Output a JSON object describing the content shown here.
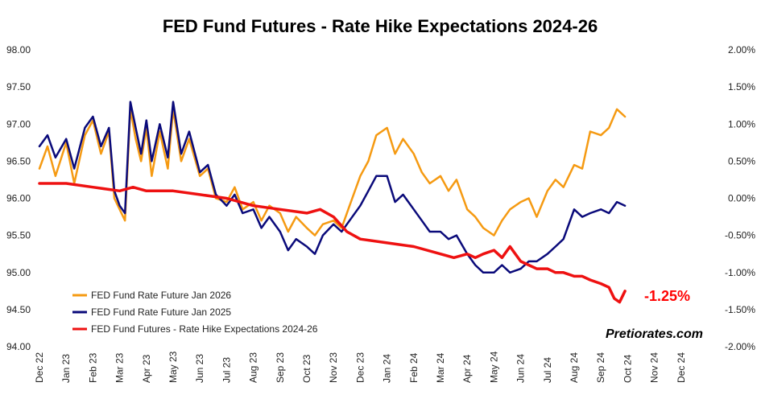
{
  "chart_data": {
    "type": "line",
    "title": "FED Fund Futures - Rate Hike Expectations 2024-26",
    "x_ticks": [
      "Dec 22",
      "Jan 23",
      "Feb 23",
      "Mar 23",
      "Apr 23",
      "May 23",
      "Jun 23",
      "Jul 23",
      "Aug 23",
      "Sep 23",
      "Oct 23",
      "Nov 23",
      "Dec 23",
      "Jan 24",
      "Feb 24",
      "Mar 24",
      "Apr 24",
      "May 24",
      "Jun 24",
      "Jul 24",
      "Aug 24",
      "Sep 24",
      "Oct 24",
      "Nov 24",
      "Dec 24"
    ],
    "y_left": {
      "ticks": [
        "98.00",
        "97.50",
        "97.00",
        "96.50",
        "96.00",
        "95.50",
        "95.00",
        "94.50",
        "94.00"
      ],
      "lim": [
        94.0,
        98.0
      ]
    },
    "y_right": {
      "ticks": [
        "2.00%",
        "1.50%",
        "1.00%",
        "0.50%",
        "0.00%",
        "-0.50%",
        "-1.00%",
        "-1.50%",
        "-2.00%"
      ],
      "lim": [
        -2.0,
        2.0
      ]
    },
    "legend_position": "bottom-left",
    "series": [
      {
        "name": "FED Fund Rate Future Jan 2026",
        "color": "#f59a12",
        "axis": "left",
        "values": [
          [
            0,
            96.4
          ],
          [
            0.3,
            96.7
          ],
          [
            0.6,
            96.3
          ],
          [
            1.0,
            96.75
          ],
          [
            1.3,
            96.2
          ],
          [
            1.7,
            96.85
          ],
          [
            2.0,
            97.05
          ],
          [
            2.3,
            96.6
          ],
          [
            2.6,
            96.9
          ],
          [
            2.8,
            96.0
          ],
          [
            3.0,
            95.85
          ],
          [
            3.2,
            95.7
          ],
          [
            3.4,
            97.2
          ],
          [
            3.6,
            96.8
          ],
          [
            3.8,
            96.5
          ],
          [
            4.0,
            96.95
          ],
          [
            4.2,
            96.3
          ],
          [
            4.5,
            96.9
          ],
          [
            4.8,
            96.4
          ],
          [
            5.0,
            97.2
          ],
          [
            5.3,
            96.5
          ],
          [
            5.6,
            96.8
          ],
          [
            6.0,
            96.3
          ],
          [
            6.3,
            96.4
          ],
          [
            6.6,
            96.0
          ],
          [
            7.0,
            95.95
          ],
          [
            7.3,
            96.15
          ],
          [
            7.6,
            95.85
          ],
          [
            8.0,
            95.95
          ],
          [
            8.3,
            95.7
          ],
          [
            8.6,
            95.9
          ],
          [
            9.0,
            95.8
          ],
          [
            9.3,
            95.55
          ],
          [
            9.6,
            95.75
          ],
          [
            10.0,
            95.6
          ],
          [
            10.3,
            95.5
          ],
          [
            10.6,
            95.65
          ],
          [
            11.0,
            95.7
          ],
          [
            11.3,
            95.6
          ],
          [
            11.6,
            95.9
          ],
          [
            12.0,
            96.3
          ],
          [
            12.3,
            96.5
          ],
          [
            12.6,
            96.85
          ],
          [
            13.0,
            96.95
          ],
          [
            13.3,
            96.6
          ],
          [
            13.6,
            96.8
          ],
          [
            14.0,
            96.6
          ],
          [
            14.3,
            96.35
          ],
          [
            14.6,
            96.2
          ],
          [
            15.0,
            96.3
          ],
          [
            15.3,
            96.1
          ],
          [
            15.6,
            96.25
          ],
          [
            16.0,
            95.85
          ],
          [
            16.3,
            95.75
          ],
          [
            16.6,
            95.6
          ],
          [
            17.0,
            95.5
          ],
          [
            17.3,
            95.7
          ],
          [
            17.6,
            95.85
          ],
          [
            18.0,
            95.95
          ],
          [
            18.3,
            96.0
          ],
          [
            18.6,
            95.75
          ],
          [
            19.0,
            96.1
          ],
          [
            19.3,
            96.25
          ],
          [
            19.6,
            96.15
          ],
          [
            20.0,
            96.45
          ],
          [
            20.3,
            96.4
          ],
          [
            20.6,
            96.9
          ],
          [
            21.0,
            96.85
          ],
          [
            21.3,
            96.95
          ],
          [
            21.6,
            97.2
          ],
          [
            21.9,
            97.1
          ]
        ]
      },
      {
        "name": "FED Fund Rate Future Jan 2025",
        "color": "#0a0a7a",
        "axis": "left",
        "values": [
          [
            0,
            96.7
          ],
          [
            0.3,
            96.85
          ],
          [
            0.6,
            96.55
          ],
          [
            1.0,
            96.8
          ],
          [
            1.3,
            96.4
          ],
          [
            1.7,
            96.95
          ],
          [
            2.0,
            97.1
          ],
          [
            2.3,
            96.7
          ],
          [
            2.6,
            96.95
          ],
          [
            2.8,
            96.1
          ],
          [
            3.0,
            95.9
          ],
          [
            3.2,
            95.8
          ],
          [
            3.4,
            97.3
          ],
          [
            3.6,
            96.95
          ],
          [
            3.8,
            96.6
          ],
          [
            4.0,
            97.05
          ],
          [
            4.2,
            96.5
          ],
          [
            4.5,
            97.0
          ],
          [
            4.8,
            96.55
          ],
          [
            5.0,
            97.3
          ],
          [
            5.3,
            96.6
          ],
          [
            5.6,
            96.9
          ],
          [
            6.0,
            96.35
          ],
          [
            6.3,
            96.45
          ],
          [
            6.6,
            96.05
          ],
          [
            7.0,
            95.9
          ],
          [
            7.3,
            96.05
          ],
          [
            7.6,
            95.8
          ],
          [
            8.0,
            95.85
          ],
          [
            8.3,
            95.6
          ],
          [
            8.6,
            95.75
          ],
          [
            9.0,
            95.55
          ],
          [
            9.3,
            95.3
          ],
          [
            9.6,
            95.45
          ],
          [
            10.0,
            95.35
          ],
          [
            10.3,
            95.25
          ],
          [
            10.6,
            95.5
          ],
          [
            11.0,
            95.65
          ],
          [
            11.3,
            95.55
          ],
          [
            11.6,
            95.7
          ],
          [
            12.0,
            95.9
          ],
          [
            12.3,
            96.1
          ],
          [
            12.6,
            96.3
          ],
          [
            13.0,
            96.3
          ],
          [
            13.3,
            95.95
          ],
          [
            13.6,
            96.05
          ],
          [
            14.0,
            95.85
          ],
          [
            14.3,
            95.7
          ],
          [
            14.6,
            95.55
          ],
          [
            15.0,
            95.55
          ],
          [
            15.3,
            95.45
          ],
          [
            15.6,
            95.5
          ],
          [
            16.0,
            95.25
          ],
          [
            16.3,
            95.1
          ],
          [
            16.6,
            95.0
          ],
          [
            17.0,
            95.0
          ],
          [
            17.3,
            95.1
          ],
          [
            17.6,
            95.0
          ],
          [
            18.0,
            95.05
          ],
          [
            18.3,
            95.15
          ],
          [
            18.6,
            95.15
          ],
          [
            19.0,
            95.25
          ],
          [
            19.3,
            95.35
          ],
          [
            19.6,
            95.45
          ],
          [
            20.0,
            95.85
          ],
          [
            20.3,
            95.75
          ],
          [
            20.6,
            95.8
          ],
          [
            21.0,
            95.85
          ],
          [
            21.3,
            95.8
          ],
          [
            21.6,
            95.95
          ],
          [
            21.9,
            95.9
          ]
        ]
      },
      {
        "name": "FED Fund Futures - Rate Hike Expectations 2024-26",
        "color": "#ee1111",
        "axis": "right",
        "values": [
          [
            0,
            0.2
          ],
          [
            1.0,
            0.2
          ],
          [
            2.0,
            0.15
          ],
          [
            3.0,
            0.1
          ],
          [
            3.5,
            0.15
          ],
          [
            4.0,
            0.1
          ],
          [
            5.0,
            0.1
          ],
          [
            6.0,
            0.05
          ],
          [
            7.0,
            0.0
          ],
          [
            8.0,
            -0.1
          ],
          [
            9.0,
            -0.15
          ],
          [
            10.0,
            -0.2
          ],
          [
            10.5,
            -0.15
          ],
          [
            11.0,
            -0.25
          ],
          [
            11.5,
            -0.45
          ],
          [
            12.0,
            -0.55
          ],
          [
            13.0,
            -0.6
          ],
          [
            14.0,
            -0.65
          ],
          [
            15.0,
            -0.75
          ],
          [
            15.5,
            -0.8
          ],
          [
            16.0,
            -0.75
          ],
          [
            16.3,
            -0.8
          ],
          [
            16.6,
            -0.75
          ],
          [
            17.0,
            -0.7
          ],
          [
            17.3,
            -0.8
          ],
          [
            17.6,
            -0.65
          ],
          [
            18.0,
            -0.85
          ],
          [
            18.3,
            -0.9
          ],
          [
            18.6,
            -0.95
          ],
          [
            19.0,
            -0.95
          ],
          [
            19.3,
            -1.0
          ],
          [
            19.6,
            -1.0
          ],
          [
            20.0,
            -1.05
          ],
          [
            20.3,
            -1.05
          ],
          [
            20.6,
            -1.1
          ],
          [
            21.0,
            -1.15
          ],
          [
            21.3,
            -1.2
          ],
          [
            21.5,
            -1.35
          ],
          [
            21.7,
            -1.4
          ],
          [
            21.9,
            -1.25
          ]
        ]
      }
    ],
    "annotation": "-1.25%",
    "watermark": "Pretiorates.com"
  }
}
